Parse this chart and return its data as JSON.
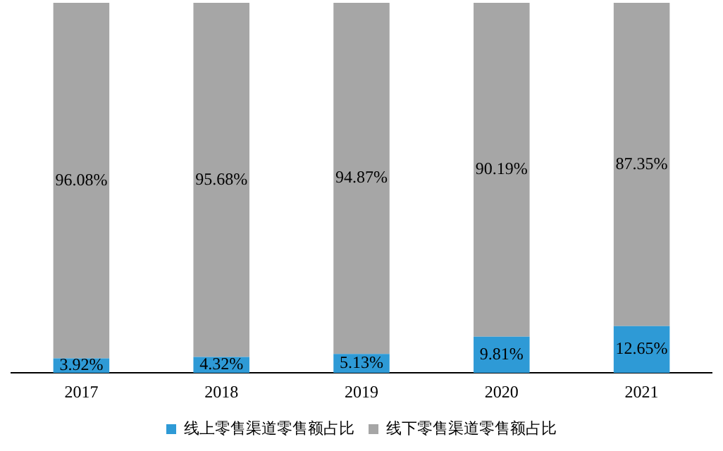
{
  "chart_data": {
    "type": "bar",
    "stacked": true,
    "categories": [
      "2017",
      "2018",
      "2019",
      "2020",
      "2021"
    ],
    "ylim": [
      0,
      100
    ],
    "tick_labels": "x",
    "grid": false,
    "legend": "bottom",
    "series": [
      {
        "name": "线上零售渠道零售额占比",
        "color": "#2e9ad6",
        "values": [
          3.92,
          4.32,
          5.13,
          9.81,
          12.65
        ],
        "value_labels": [
          "3.92%",
          "4.32%",
          "5.13%",
          "9.81%",
          "12.65%"
        ]
      },
      {
        "name": "线下零售渠道零售额占比",
        "color": "#a6a6a6",
        "values": [
          96.08,
          95.68,
          94.87,
          90.19,
          87.35
        ],
        "value_labels": [
          "96.08%",
          "95.68%",
          "94.87%",
          "90.19%",
          "87.35%"
        ]
      }
    ]
  }
}
